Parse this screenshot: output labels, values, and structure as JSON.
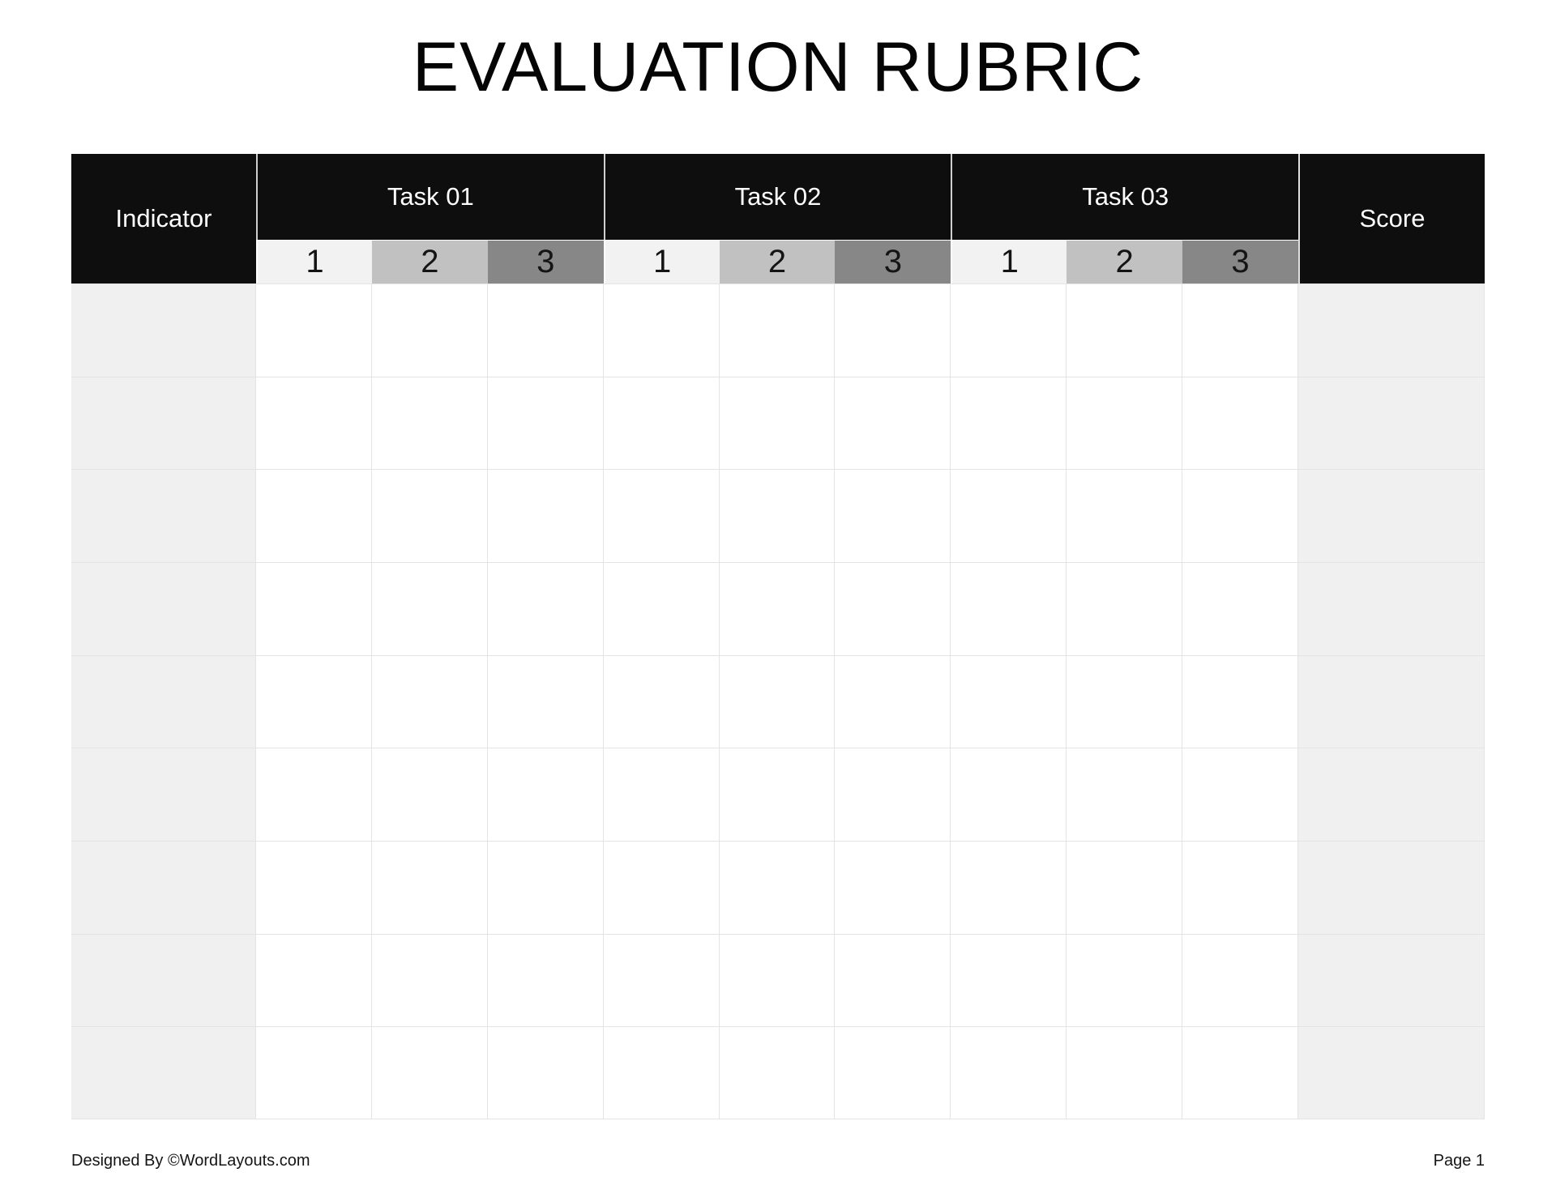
{
  "page": {
    "title": "EVALUATION RUBRIC",
    "footer": {
      "designed_by": "Designed By ©WordLayouts.com",
      "page_number": "Page 1"
    }
  },
  "table": {
    "indicator_label": "Indicator",
    "score_label": "Score",
    "tasks": [
      {
        "label": "Task 01",
        "levels": [
          "1",
          "2",
          "3"
        ]
      },
      {
        "label": "Task 02",
        "levels": [
          "1",
          "2",
          "3"
        ]
      },
      {
        "label": "Task 03",
        "levels": [
          "1",
          "2",
          "3"
        ]
      }
    ],
    "body_row_count": 9,
    "colors": {
      "header_bg": "#0e0e0e",
      "header_text": "#ffffff",
      "level_1_bg": "#f2f2f2",
      "level_2_bg": "#c1c1c1",
      "level_3_bg": "#878787",
      "side_column_bg": "#f0f0f0",
      "grid_line": "#e4e4e4"
    }
  }
}
